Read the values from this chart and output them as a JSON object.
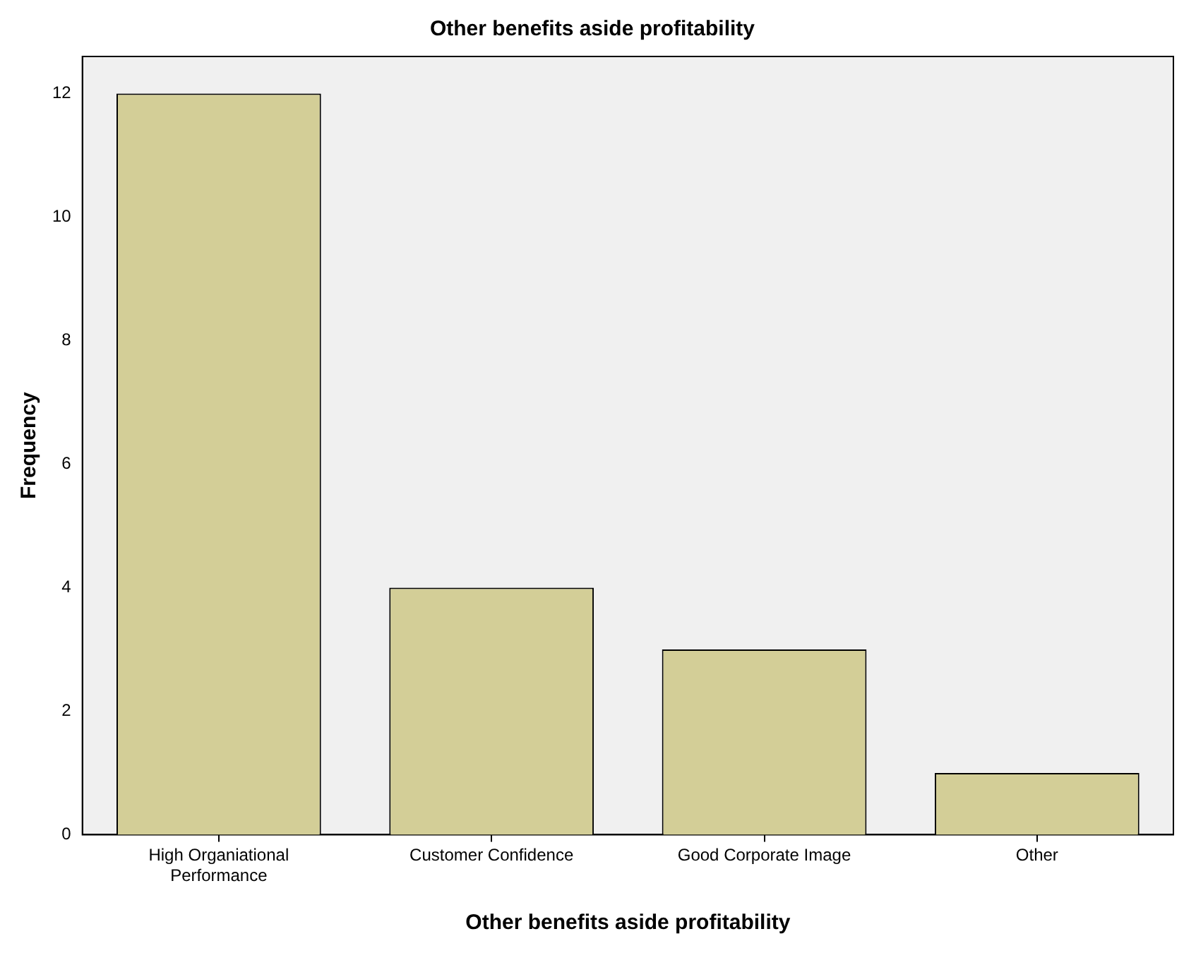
{
  "chart_data": {
    "type": "bar",
    "title": "Other benefits aside profitability",
    "xlabel": "Other benefits aside profitability",
    "ylabel": "Frequency",
    "categories": [
      "High Organiational Performance",
      "Customer Confidence",
      "Good Corporate Image",
      "Other"
    ],
    "values": [
      12,
      4,
      3,
      1
    ],
    "color": "#d3ce97",
    "ylim": [
      0,
      12.6
    ],
    "yticks": [
      0,
      2,
      4,
      6,
      8,
      10,
      12
    ],
    "grid": false,
    "legend": false
  }
}
